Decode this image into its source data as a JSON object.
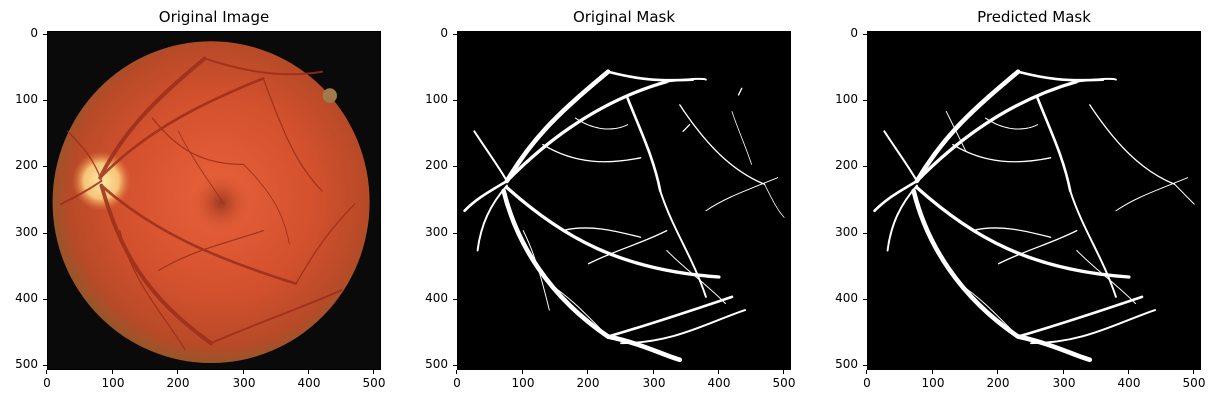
{
  "panels": [
    {
      "title": "Original Image"
    },
    {
      "title": "Original Mask"
    },
    {
      "title": "Predicted Mask"
    }
  ],
  "axes": {
    "y_ticks": [
      "0",
      "100",
      "200",
      "300",
      "400",
      "500"
    ],
    "x_ticks": [
      "0",
      "100",
      "200",
      "300",
      "400",
      "500"
    ]
  }
}
